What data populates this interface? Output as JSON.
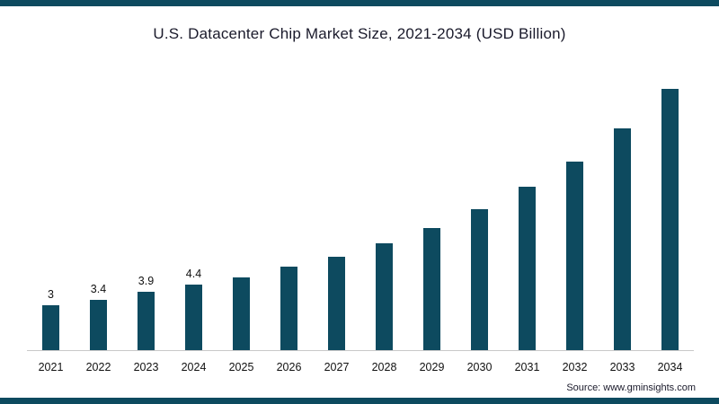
{
  "colors": {
    "accent": "#0d4a5f",
    "bar": "#0d4a5f",
    "axis_line": "#c9c9c9"
  },
  "chart_data": {
    "type": "bar",
    "title": "U.S. Datacenter Chip Market Size, 2021-2034 (USD Billion)",
    "categories": [
      "2021",
      "2022",
      "2023",
      "2024",
      "2025",
      "2026",
      "2027",
      "2028",
      "2029",
      "2030",
      "2031",
      "2032",
      "2033",
      "2034"
    ],
    "values": [
      3,
      3.4,
      3.9,
      4.4,
      4.9,
      5.6,
      6.3,
      7.2,
      8.2,
      9.5,
      11,
      12.7,
      14.9,
      17.6
    ],
    "data_labels": [
      "3",
      "3.4",
      "3.9",
      "4.4",
      "",
      "",
      "",
      "",
      "",
      "",
      "",
      "",
      "",
      ""
    ],
    "xlabel": "",
    "ylabel": "",
    "ylim": [
      0,
      18
    ],
    "grid": false,
    "legend": "none",
    "bar_color": "#0d4a5f"
  },
  "source": {
    "text": "Source: www.gminsights.com"
  }
}
